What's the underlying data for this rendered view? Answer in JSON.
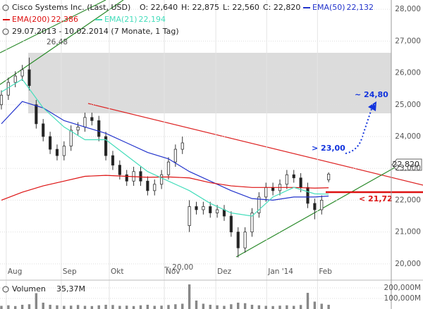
{
  "header": {
    "title": "Cisco Systems Inc. (Last, USD)",
    "ohlc": [
      "O: 22,640",
      "H: 22,875",
      "L: 22,560",
      "C: 22,820"
    ],
    "period": "29.07.2013 - 10.02.2014 (7 Monate, 1 Tag)"
  },
  "chart_data": {
    "type": "candlestick",
    "x": [
      0,
      1,
      2,
      3,
      4,
      5,
      6,
      7,
      8,
      9,
      10,
      11,
      12,
      13,
      14,
      15,
      16,
      17,
      18,
      19,
      20,
      21,
      22,
      23,
      24,
      25,
      26,
      27,
      28,
      29,
      30,
      31,
      32,
      33,
      34,
      35,
      36,
      37,
      38,
      39,
      40,
      41,
      42,
      43,
      44,
      45,
      46,
      47
    ],
    "open": [
      25.0,
      25.3,
      25.7,
      25.9,
      26.1,
      25.0,
      24.4,
      24.0,
      23.6,
      23.4,
      23.7,
      24.2,
      24.3,
      24.6,
      24.5,
      24.0,
      23.4,
      23.1,
      22.8,
      22.6,
      22.9,
      22.6,
      22.3,
      22.5,
      22.8,
      23.2,
      23.6,
      21.2,
      21.8,
      21.7,
      21.8,
      21.6,
      21.7,
      21.5,
      21.0,
      20.5,
      21.0,
      21.6,
      22.1,
      22.4,
      22.3,
      22.5,
      22.8,
      22.7,
      22.4,
      21.9,
      21.7,
      22.64
    ],
    "high": [
      25.45,
      25.85,
      26.05,
      26.25,
      26.48,
      25.15,
      24.55,
      24.15,
      23.75,
      23.85,
      24.35,
      24.45,
      24.75,
      24.75,
      24.65,
      24.15,
      23.55,
      23.25,
      22.95,
      23.05,
      23.05,
      22.75,
      22.65,
      22.95,
      23.35,
      23.75,
      24.0,
      22.0,
      21.95,
      21.95,
      21.95,
      21.85,
      21.85,
      21.65,
      21.15,
      21.15,
      21.75,
      22.25,
      22.55,
      22.55,
      22.65,
      22.95,
      22.95,
      22.85,
      22.55,
      22.05,
      22.15,
      22.875
    ],
    "low": [
      24.85,
      25.15,
      25.55,
      25.75,
      25.45,
      24.25,
      23.85,
      23.45,
      23.25,
      23.25,
      23.55,
      24.05,
      24.15,
      24.35,
      23.85,
      23.25,
      22.95,
      22.65,
      22.45,
      22.45,
      22.45,
      22.15,
      22.15,
      22.35,
      22.65,
      23.05,
      23.45,
      21.0,
      21.55,
      21.55,
      21.45,
      21.45,
      21.35,
      20.85,
      20.2,
      20.35,
      20.85,
      21.45,
      21.95,
      22.15,
      22.15,
      22.35,
      22.55,
      22.25,
      21.75,
      21.4,
      21.55,
      22.56
    ],
    "close": [
      25.3,
      25.7,
      25.9,
      26.1,
      25.6,
      24.4,
      24.0,
      23.6,
      23.4,
      23.7,
      24.2,
      24.3,
      24.6,
      24.5,
      24.0,
      23.4,
      23.1,
      22.8,
      22.6,
      22.9,
      22.6,
      22.3,
      22.5,
      22.8,
      23.2,
      23.6,
      23.8,
      21.8,
      21.7,
      21.8,
      21.6,
      21.7,
      21.5,
      21.0,
      20.5,
      21.0,
      21.6,
      22.1,
      22.4,
      22.3,
      22.5,
      22.8,
      22.7,
      22.4,
      21.9,
      21.7,
      22.0,
      22.82
    ],
    "series": [
      {
        "name": "EMA(50)",
        "legend_value": "22,132",
        "color": "#2233cc",
        "x": [
          0,
          3,
          6,
          9,
          12,
          15,
          18,
          21,
          24,
          27,
          30,
          33,
          36,
          39,
          42,
          45,
          47
        ],
        "values": [
          24.4,
          25.1,
          24.9,
          24.5,
          24.3,
          24.1,
          23.8,
          23.5,
          23.3,
          22.9,
          22.6,
          22.3,
          22.05,
          22.0,
          22.1,
          22.1,
          22.13
        ]
      },
      {
        "name": "EMA(200)",
        "legend_value": "22,386",
        "color": "#dd1111",
        "x": [
          0,
          3,
          6,
          9,
          12,
          15,
          18,
          21,
          24,
          27,
          30,
          33,
          36,
          39,
          42,
          45,
          47
        ],
        "values": [
          22.0,
          22.25,
          22.45,
          22.6,
          22.75,
          22.78,
          22.75,
          22.72,
          22.73,
          22.7,
          22.55,
          22.45,
          22.4,
          22.4,
          22.4,
          22.38,
          22.39
        ]
      },
      {
        "name": "EMA(21)",
        "legend_value": "22,194",
        "color": "#44ddbb",
        "x": [
          0,
          3,
          6,
          9,
          12,
          15,
          18,
          21,
          24,
          27,
          30,
          33,
          36,
          39,
          42,
          45,
          47
        ],
        "values": [
          25.4,
          25.8,
          24.9,
          24.3,
          23.9,
          23.9,
          23.4,
          22.9,
          22.6,
          22.3,
          21.9,
          21.6,
          21.5,
          22.1,
          22.4,
          22.2,
          22.19
        ]
      }
    ],
    "xlim": [
      -0.2,
      56.0
    ],
    "xticks": [
      {
        "value": 0.7,
        "label": "Aug"
      },
      {
        "value": 8.6,
        "label": "Sep"
      },
      {
        "value": 15.5,
        "label": "Okt"
      },
      {
        "value": 23.4,
        "label": "Nov"
      },
      {
        "value": 30.8,
        "label": "Dez"
      },
      {
        "value": 38.1,
        "label": "Jan '14"
      },
      {
        "value": 45.4,
        "label": "Feb"
      }
    ],
    "ylim": [
      19.93,
      28.29
    ],
    "yticks": [
      {
        "value": 20,
        "label": "20,000"
      },
      {
        "value": 21,
        "label": "21,000"
      },
      {
        "value": 22,
        "label": "22,000"
      },
      {
        "value": 23,
        "label": "23,000"
      },
      {
        "value": 24,
        "label": "24,000"
      },
      {
        "value": 25,
        "label": "25,000"
      },
      {
        "value": 26,
        "label": "26,000"
      },
      {
        "value": 27,
        "label": "27,000"
      },
      {
        "value": 28,
        "label": "28,000"
      }
    ],
    "grid": true,
    "last_price_label": "22,820",
    "annotations": [
      "26,48",
      "~ 20,00",
      "> 23,00",
      "~ 24,80",
      "< 21,72"
    ],
    "volume": {
      "label": "Volumen",
      "value_label": "35,37M",
      "color": "#888888",
      "values": [
        30,
        35,
        28,
        40,
        45,
        150,
        60,
        40,
        35,
        30,
        32,
        38,
        30,
        28,
        35,
        40,
        38,
        30,
        32,
        28,
        35,
        40,
        30,
        32,
        38,
        45,
        50,
        233,
        80,
        50,
        40,
        35,
        30,
        45,
        60,
        55,
        40,
        35,
        30,
        28,
        32,
        35,
        30,
        38,
        153,
        70,
        50,
        40
      ],
      "ylim": [
        0,
        260
      ],
      "yticks": [
        {
          "value": 200,
          "label": "200,000M"
        },
        {
          "value": 100,
          "label": "100,000M"
        }
      ]
    }
  }
}
